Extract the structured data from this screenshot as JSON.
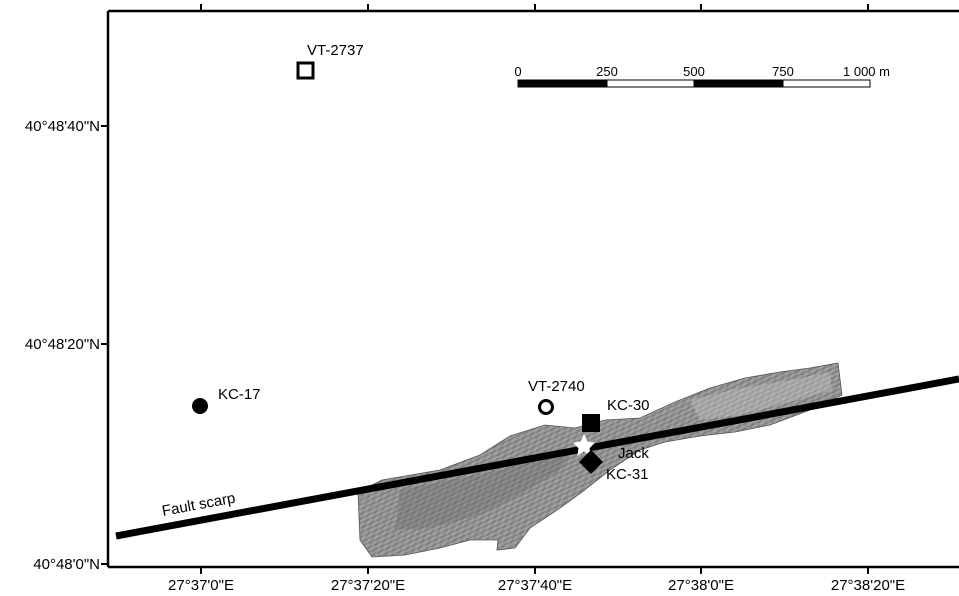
{
  "map": {
    "lat_ticks": [
      "40°48'40\"N",
      "40°48'20\"N",
      "40°48'0\"N"
    ],
    "lon_ticks": [
      "27°37'0\"E",
      "27°37'20\"E",
      "27°37'40\"E",
      "27°38'0\"E",
      "27°38'20\"E"
    ],
    "scale_bar": {
      "labels": [
        "0",
        "250",
        "500",
        "750",
        "1 000 m"
      ]
    },
    "fault_label": "Fault scarp",
    "sites": [
      {
        "id": "VT-2737",
        "symbol": "hollow-square"
      },
      {
        "id": "KC-17",
        "symbol": "filled-circle"
      },
      {
        "id": "VT-2740",
        "symbol": "ring"
      },
      {
        "id": "KC-30",
        "symbol": "filled-square"
      },
      {
        "id": "Jack",
        "symbol": "star"
      },
      {
        "id": "KC-31",
        "symbol": "filled-diamond"
      }
    ],
    "colors": {
      "frame": "#000000",
      "fault_line": "#000000",
      "bathymetry": "#8a8a8a",
      "background": "#ffffff"
    }
  }
}
